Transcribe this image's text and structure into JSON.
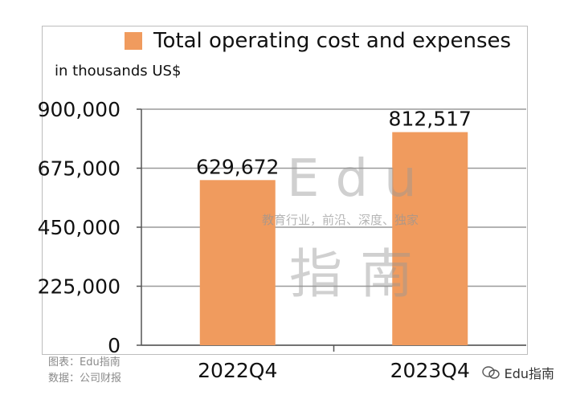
{
  "chart_data": {
    "type": "bar",
    "categories": [
      "2022Q4",
      "2023Q4"
    ],
    "series": [
      {
        "name": "Total operating cost and expenses",
        "values": [
          629672,
          812517
        ],
        "color": "#F09B5E"
      }
    ],
    "data_labels": [
      "629,672",
      "812,517"
    ],
    "ylabel": "in thousands US$",
    "ylim": [
      0,
      900000
    ],
    "yticks": [
      0,
      225000,
      450000,
      675000,
      900000
    ],
    "ytick_labels": [
      "0",
      "225,000",
      "450,000",
      "675,000",
      "900,000"
    ],
    "grid": true,
    "legend_position": "top"
  },
  "legend": {
    "label": "Total operating cost and expenses"
  },
  "unit": "in thousands US$",
  "watermark": {
    "main": "Edu",
    "sub": "教育行业，前沿、深度、独家",
    "cn": "指南"
  },
  "source": {
    "line1": "图表：Edu指南",
    "line2": "数据：公司财报"
  },
  "brand": {
    "label": "Edu指南"
  }
}
